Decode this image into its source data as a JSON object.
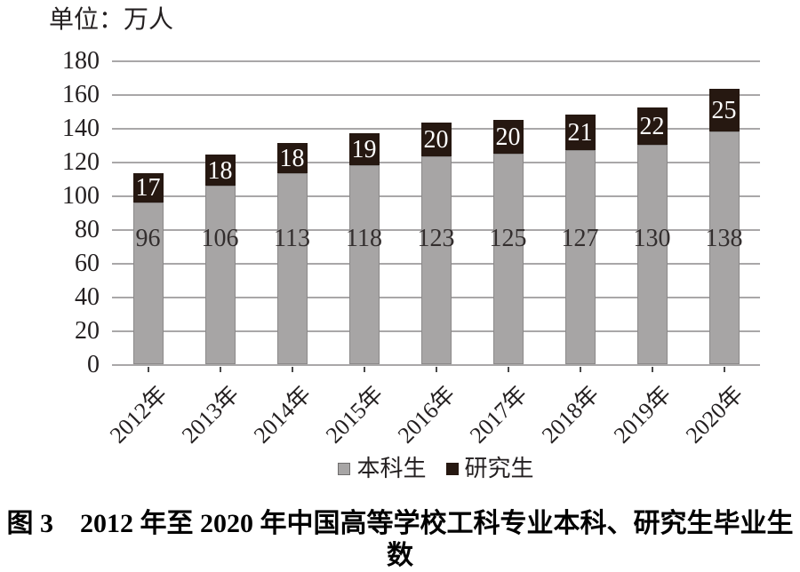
{
  "chart_data": {
    "type": "bar",
    "stacked": true,
    "title": "图 3　2012 年至 2020 年中国高等学校工科专业本科、研究生毕业生数",
    "unit_label": "单位：万人",
    "categories": [
      "2012年",
      "2013年",
      "2014年",
      "2015年",
      "2016年",
      "2017年",
      "2018年",
      "2019年",
      "2020年"
    ],
    "series": [
      {
        "name": "本科生",
        "values": [
          96,
          106,
          113,
          118,
          123,
          125,
          127,
          130,
          138
        ],
        "color": "#a7a5a5",
        "label_color": "#332e2e"
      },
      {
        "name": "研究生",
        "values": [
          17,
          18,
          18,
          19,
          20,
          20,
          21,
          22,
          25
        ],
        "color": "#261811",
        "label_color": "#ffffff"
      }
    ],
    "ylim": [
      0,
      180
    ],
    "ytick_step": 20,
    "yticks": [
      0,
      20,
      40,
      60,
      80,
      100,
      120,
      140,
      160,
      180
    ],
    "grid": "horizontal",
    "gridline_color": "#a9a7a8",
    "legend_position": "bottom",
    "xlabel": "",
    "ylabel": ""
  }
}
